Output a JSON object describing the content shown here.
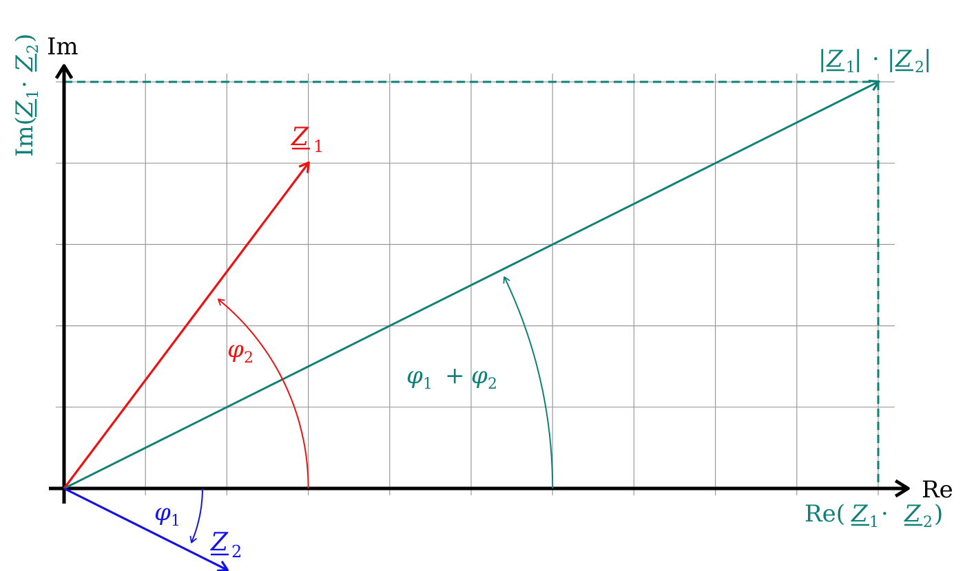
{
  "colors": {
    "z1": "#ee1111",
    "z2": "#1111ee",
    "product": "#0e8077",
    "axis": "#000000",
    "grid": "#9a9a9a"
  },
  "axes": {
    "x_label": "Re",
    "y_label": "Im"
  },
  "vectors": {
    "z1": {
      "symbol": "Z",
      "subscript": "1",
      "re": 3,
      "im": 4
    },
    "z2": {
      "symbol": "Z",
      "subscript": "2",
      "re": 2,
      "im": -1
    },
    "product": {
      "re": 10,
      "im": 5
    }
  },
  "angles": {
    "phi1": {
      "symbol": "φ",
      "subscript": "1"
    },
    "phi2": {
      "symbol": "φ",
      "subscript": "2"
    },
    "sum": {
      "phi_a": "φ",
      "sub_a": "1",
      "plus": "+",
      "phi_b": "φ",
      "sub_b": "2"
    }
  },
  "product_labels": {
    "magnitude": {
      "bar": "|",
      "z": "Z",
      "sub1": "1",
      "dot": "·",
      "sub2": "2"
    },
    "real": {
      "prefix": "Re(",
      "z": "Z",
      "sub1": "1",
      "dot": "·",
      "sub2": "2",
      "suffix": ")"
    },
    "imag": {
      "prefix": "Im(",
      "z": "Z",
      "sub1": "1",
      "dot": "·",
      "sub2": "2",
      "suffix": ")"
    }
  }
}
